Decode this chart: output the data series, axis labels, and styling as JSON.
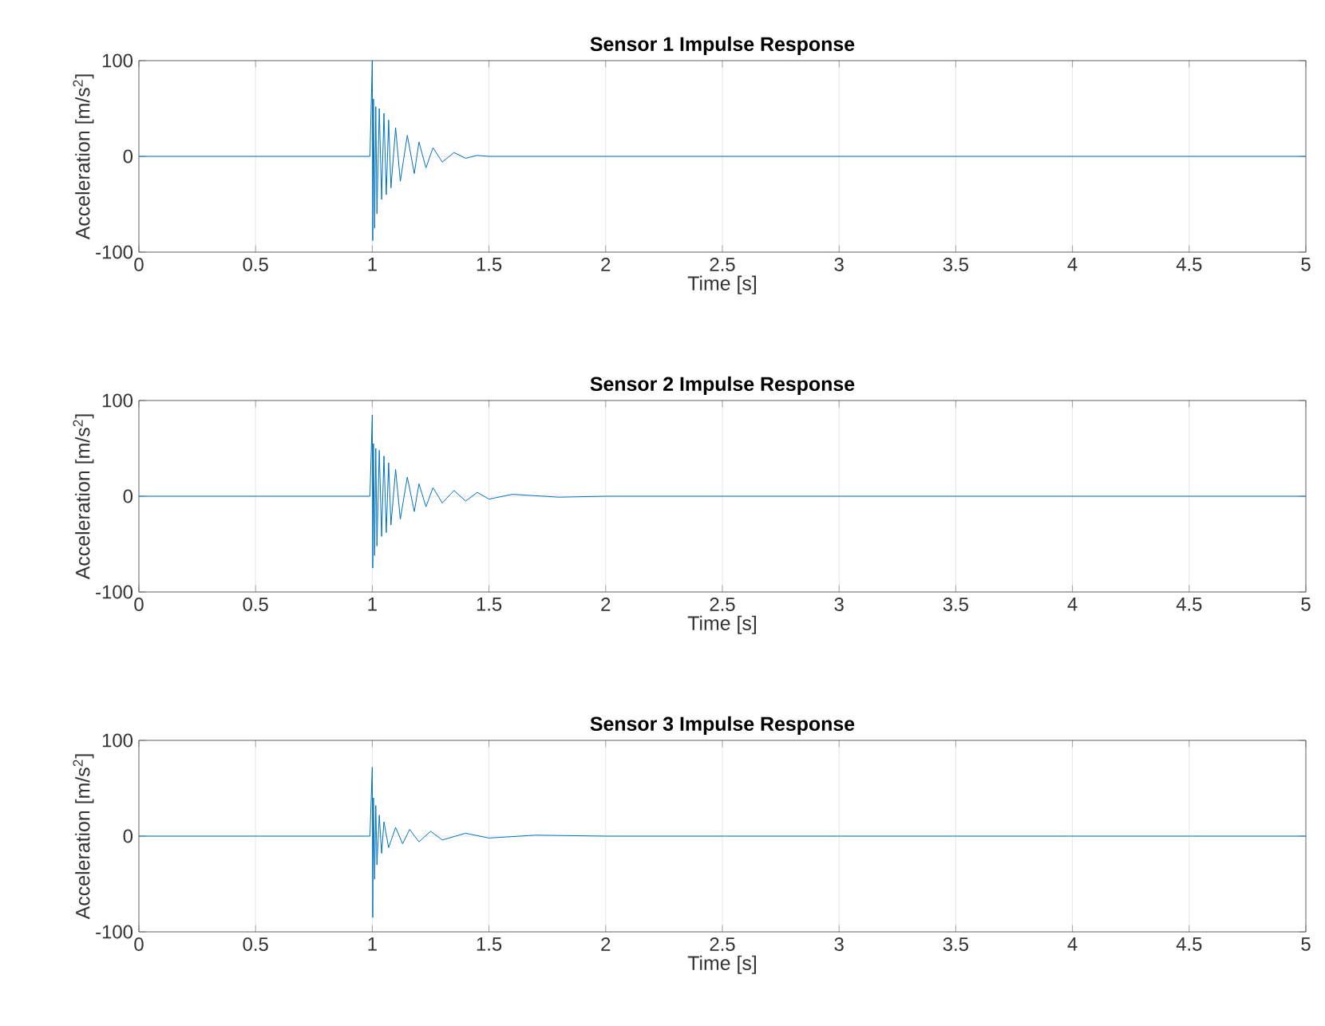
{
  "chart_data": [
    {
      "type": "line",
      "title": "Sensor 1 Impulse Response",
      "xlabel": "Time [s]",
      "ylabel": "Acceleration [m/s$^{2}$]",
      "color": "#0072bd",
      "grid": true,
      "xlim": [
        0,
        5
      ],
      "ylim": [
        -100,
        100
      ],
      "xticks": [
        0,
        0.5,
        1,
        1.5,
        2,
        2.5,
        3,
        3.5,
        4,
        4.5,
        5
      ],
      "yticks": [
        -100,
        0,
        100
      ],
      "x": [
        0,
        0.5,
        0.99,
        1.0,
        1.002,
        1.005,
        1.01,
        1.015,
        1.02,
        1.03,
        1.04,
        1.05,
        1.06,
        1.07,
        1.08,
        1.1,
        1.12,
        1.15,
        1.18,
        1.2,
        1.23,
        1.26,
        1.3,
        1.35,
        1.4,
        1.45,
        1.5,
        2,
        3,
        4,
        5
      ],
      "values": [
        0,
        0,
        0,
        100,
        -88,
        60,
        -75,
        52,
        -60,
        50,
        -45,
        45,
        -40,
        38,
        -33,
        30,
        -26,
        22,
        -18,
        15,
        -12,
        9,
        -6,
        4,
        -2,
        1,
        0,
        0,
        0,
        0,
        0
      ]
    },
    {
      "type": "line",
      "title": "Sensor 2 Impulse Response",
      "xlabel": "Time [s]",
      "ylabel": "Acceleration [m/s$^{2}$]",
      "color": "#0072bd",
      "grid": true,
      "xlim": [
        0,
        5
      ],
      "ylim": [
        -100,
        100
      ],
      "xticks": [
        0,
        0.5,
        1,
        1.5,
        2,
        2.5,
        3,
        3.5,
        4,
        4.5,
        5
      ],
      "yticks": [
        -100,
        0,
        100
      ],
      "x": [
        0,
        0.5,
        0.99,
        1.0,
        1.002,
        1.005,
        1.01,
        1.015,
        1.02,
        1.03,
        1.04,
        1.05,
        1.06,
        1.07,
        1.08,
        1.1,
        1.12,
        1.15,
        1.18,
        1.2,
        1.23,
        1.26,
        1.3,
        1.35,
        1.4,
        1.45,
        1.5,
        1.6,
        1.8,
        2,
        3,
        4,
        5
      ],
      "values": [
        0,
        0,
        0,
        85,
        -75,
        55,
        -62,
        50,
        -52,
        48,
        -42,
        42,
        -38,
        35,
        -30,
        28,
        -24,
        20,
        -16,
        13,
        -11,
        9,
        -7,
        6,
        -5,
        4,
        -3,
        2,
        -1,
        0,
        0,
        0,
        0
      ]
    },
    {
      "type": "line",
      "title": "Sensor 3 Impulse Response",
      "xlabel": "Time [s]",
      "ylabel": "Acceleration [m/s$^{2}$]",
      "color": "#0072bd",
      "grid": true,
      "xlim": [
        0,
        5
      ],
      "ylim": [
        -100,
        100
      ],
      "xticks": [
        0,
        0.5,
        1,
        1.5,
        2,
        2.5,
        3,
        3.5,
        4,
        4.5,
        5
      ],
      "yticks": [
        -100,
        0,
        100
      ],
      "x": [
        0,
        0.5,
        0.99,
        1.0,
        1.002,
        1.005,
        1.01,
        1.015,
        1.02,
        1.03,
        1.04,
        1.05,
        1.07,
        1.1,
        1.13,
        1.16,
        1.2,
        1.25,
        1.3,
        1.4,
        1.5,
        1.7,
        2,
        3,
        4,
        5
      ],
      "values": [
        0,
        0,
        0,
        72,
        -85,
        40,
        -45,
        32,
        -30,
        22,
        -18,
        15,
        -12,
        9,
        -8,
        7,
        -6,
        5,
        -4,
        3,
        -2,
        1,
        0,
        0,
        0,
        0
      ]
    }
  ]
}
